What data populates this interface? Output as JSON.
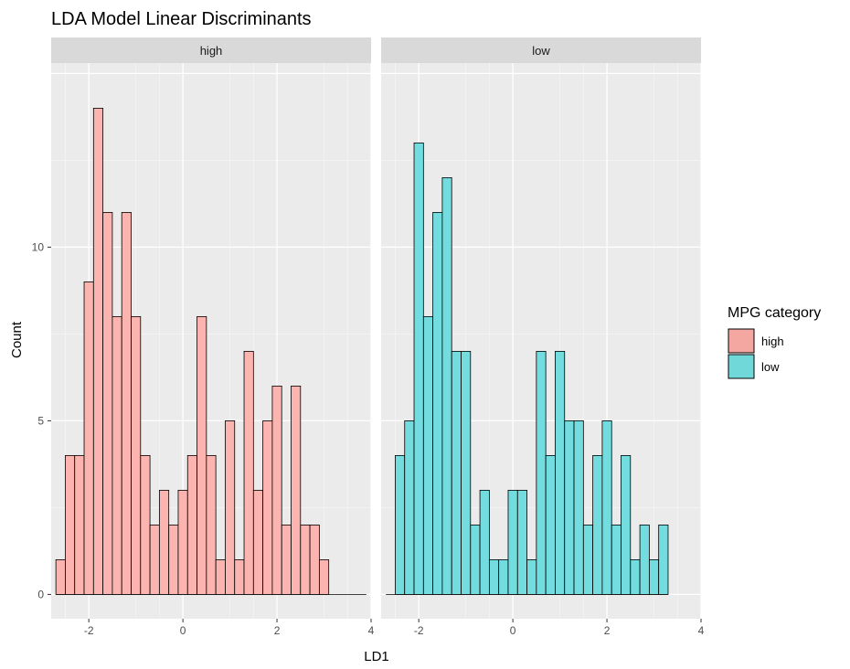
{
  "chart_data": {
    "type": "bar",
    "subtype": "faceted-histogram",
    "title": "LDA Model Linear Discriminants",
    "xlabel": "LD1",
    "ylabel": "Count",
    "xlim": [
      -2.8,
      4.0
    ],
    "ylim": [
      -0.7,
      15.3
    ],
    "x_ticks": [
      -2,
      0,
      2,
      4
    ],
    "y_ticks": [
      0,
      5,
      10
    ],
    "grid": true,
    "legend": {
      "title": "MPG category",
      "placement": "right",
      "entries": [
        {
          "label": "high",
          "color": "#F8766D"
        },
        {
          "label": "low",
          "color": "#00BFC4"
        }
      ]
    },
    "bin_start": -2.7,
    "bin_width": 0.2,
    "facets": [
      {
        "label": "high",
        "color": "#F8766D",
        "values": [
          1,
          4,
          4,
          9,
          14,
          11,
          8,
          11,
          8,
          4,
          2,
          3,
          2,
          3,
          4,
          8,
          4,
          1,
          5,
          1,
          7,
          3,
          5,
          6,
          2,
          6,
          2,
          2,
          1,
          0,
          0,
          0,
          0
        ]
      },
      {
        "label": "low",
        "color": "#00BFC4",
        "values": [
          0,
          4,
          5,
          13,
          8,
          11,
          12,
          7,
          7,
          2,
          3,
          1,
          1,
          3,
          3,
          1,
          7,
          4,
          7,
          5,
          5,
          2,
          4,
          5,
          2,
          4,
          1,
          2,
          1,
          2
        ]
      }
    ]
  }
}
